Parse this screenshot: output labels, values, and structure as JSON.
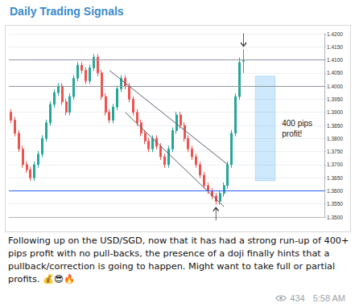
{
  "header": {
    "title": "Daily Trading Signals"
  },
  "chart_data": {
    "type": "candlestick",
    "x": [
      1,
      2,
      3,
      4,
      5,
      6,
      7,
      8,
      9,
      10,
      11,
      12,
      13,
      14,
      15,
      16,
      17,
      18,
      19,
      20,
      21,
      22,
      23,
      24,
      25,
      26,
      27,
      28,
      29,
      30,
      31,
      32,
      33,
      34,
      35,
      36,
      37,
      38,
      39,
      40,
      41,
      42,
      43,
      44,
      45,
      46,
      47,
      48,
      49,
      50,
      51,
      52,
      53,
      54,
      55,
      56,
      57,
      58,
      59,
      60
    ],
    "open": [
      1.39,
      1.387,
      1.382,
      1.376,
      1.37,
      1.368,
      1.365,
      1.37,
      1.374,
      1.38,
      1.386,
      1.393,
      1.3975,
      1.4,
      1.394,
      1.39,
      1.396,
      1.403,
      1.408,
      1.406,
      1.402,
      1.407,
      1.411,
      1.405,
      1.396,
      1.39,
      1.387,
      1.392,
      1.399,
      1.403,
      1.4,
      1.395,
      1.39,
      1.386,
      1.382,
      1.379,
      1.376,
      1.38,
      1.377,
      1.373,
      1.37,
      1.376,
      1.383,
      1.389,
      1.385,
      1.38,
      1.376,
      1.373,
      1.37,
      1.366,
      1.362,
      1.36,
      1.358,
      1.356,
      1.359,
      1.362,
      1.37,
      1.382,
      1.396,
      1.4095
    ],
    "high": [
      1.3912,
      1.3882,
      1.3832,
      1.3772,
      1.3712,
      1.3692,
      1.3712,
      1.3752,
      1.3812,
      1.3872,
      1.3942,
      1.3987,
      1.4012,
      1.4012,
      1.3952,
      1.3972,
      1.4042,
      1.4092,
      1.4092,
      1.4072,
      1.4082,
      1.4122,
      1.4122,
      1.4062,
      1.3972,
      1.3912,
      1.3932,
      1.4002,
      1.4042,
      1.4042,
      1.4012,
      1.3962,
      1.3912,
      1.3872,
      1.3832,
      1.3802,
      1.3812,
      1.3812,
      1.3782,
      1.3742,
      1.3772,
      1.3842,
      1.3902,
      1.3902,
      1.3862,
      1.3812,
      1.3772,
      1.3742,
      1.3712,
      1.3672,
      1.3632,
      1.3612,
      1.3592,
      1.3602,
      1.3632,
      1.3712,
      1.3832,
      1.3972,
      1.411,
      1.414
    ],
    "low": [
      1.3858,
      1.3808,
      1.3748,
      1.3688,
      1.3668,
      1.3638,
      1.3638,
      1.3688,
      1.3728,
      1.3788,
      1.3848,
      1.3918,
      1.3963,
      1.3928,
      1.3888,
      1.3888,
      1.3948,
      1.4018,
      1.4048,
      1.4008,
      1.4008,
      1.4058,
      1.4038,
      1.3948,
      1.3888,
      1.3858,
      1.3858,
      1.3908,
      1.3978,
      1.3988,
      1.3938,
      1.3888,
      1.3848,
      1.3808,
      1.3778,
      1.3748,
      1.3748,
      1.3758,
      1.3718,
      1.3688,
      1.3688,
      1.3748,
      1.3818,
      1.3838,
      1.3788,
      1.3748,
      1.3718,
      1.3688,
      1.3648,
      1.3608,
      1.3588,
      1.3568,
      1.3548,
      1.3548,
      1.3578,
      1.3608,
      1.3688,
      1.3808,
      1.3948,
      1.405
    ],
    "close": [
      1.387,
      1.382,
      1.376,
      1.37,
      1.368,
      1.365,
      1.37,
      1.374,
      1.38,
      1.386,
      1.393,
      1.3975,
      1.4,
      1.394,
      1.39,
      1.396,
      1.403,
      1.408,
      1.406,
      1.402,
      1.407,
      1.411,
      1.405,
      1.396,
      1.39,
      1.387,
      1.392,
      1.399,
      1.403,
      1.4,
      1.395,
      1.39,
      1.386,
      1.382,
      1.379,
      1.376,
      1.38,
      1.377,
      1.373,
      1.37,
      1.376,
      1.383,
      1.389,
      1.385,
      1.38,
      1.376,
      1.373,
      1.37,
      1.366,
      1.362,
      1.36,
      1.358,
      1.356,
      1.359,
      1.362,
      1.37,
      1.382,
      1.396,
      1.409,
      1.41
    ],
    "color": {
      "up": "#26a69a",
      "down": "#ef5350"
    },
    "xlim": [
      1,
      80
    ],
    "ylim": [
      1.35,
      1.42
    ],
    "yticks": [
      {
        "value": 1.35,
        "label": "1.3500"
      },
      {
        "value": 1.355,
        "label": "1.3550"
      },
      {
        "value": 1.36,
        "label": "1.3600"
      },
      {
        "value": 1.365,
        "label": "1.3650"
      },
      {
        "value": 1.37,
        "label": "1.3700"
      },
      {
        "value": 1.375,
        "label": "1.3750"
      },
      {
        "value": 1.38,
        "label": "1.3800"
      },
      {
        "value": 1.385,
        "label": "1.3850"
      },
      {
        "value": 1.39,
        "label": "1.3900"
      },
      {
        "value": 1.395,
        "label": "1.3950"
      },
      {
        "value": 1.4,
        "label": "1.4000"
      },
      {
        "value": 1.405,
        "label": "1.4050"
      },
      {
        "value": 1.41,
        "label": "1.4100"
      },
      {
        "value": 1.415,
        "label": "1.4150"
      },
      {
        "value": 1.42,
        "label": "1.4200"
      }
    ],
    "grid": true,
    "tick_labels": "y",
    "annotations": [
      {
        "type": "hline",
        "y": 1.407,
        "color": "#9598a1"
      },
      {
        "type": "hline",
        "y": 1.403,
        "color": "#9598a1"
      },
      {
        "type": "hline",
        "y": 1.3595,
        "color": "#2962ff"
      },
      {
        "type": "trend_line",
        "points": [
          [
            26,
            1.406
          ],
          [
            56,
            1.37
          ]
        ],
        "color": "#5d606b"
      },
      {
        "type": "trend_line",
        "points": [
          [
            30,
            1.39
          ],
          [
            55,
            1.354
          ]
        ],
        "color": "#5d606b"
      },
      {
        "type": "range_box",
        "x": [
          63,
          68
        ],
        "y": [
          1.3638,
          1.4038
        ],
        "label": "400 pips profit!",
        "color": "#2196f3"
      },
      {
        "type": "arrow",
        "direction": "down",
        "x": 60
      },
      {
        "type": "arrow",
        "direction": "up",
        "x": 53
      }
    ]
  },
  "message": {
    "text": "Following up on the USD/SGD, now that it has had a strong run-up of 400+ pips profit with no pull-backs, the presence of a doji finally hints that a pullback/correction is going to happen. Might want to take full or partial profits. 💰😎🔥",
    "views": 434,
    "time": "5:58 AM"
  }
}
